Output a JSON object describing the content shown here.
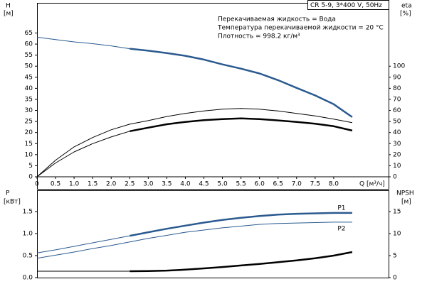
{
  "chart_data": [
    {
      "type": "line",
      "title": "CR 5-9, 3*400 V, 50Hz",
      "annotations": [
        "Перекачиваемая жидкость = Вода",
        "Температура перекачиваемой жидкости = 20 °C",
        "Плотность = 998.2 кг/м³"
      ],
      "xlabel": "Q [м³/ч]",
      "ylabel": "H",
      "yunit": "[м]",
      "y2label": "eta",
      "y2unit": "[%]",
      "x": [
        0,
        0.5,
        1,
        1.5,
        2,
        2.5,
        3,
        3.5,
        4,
        4.5,
        5,
        5.5,
        6,
        6.5,
        7,
        7.5,
        8,
        8.5
      ],
      "xlim": [
        0,
        9.48
      ],
      "xticks": [
        0,
        0.5,
        {
          "value": 1,
          "label": "1.0"
        },
        1.5,
        {
          "value": 2,
          "label": "2.0"
        },
        2.5,
        {
          "value": 3,
          "label": "3.0"
        },
        3.5,
        {
          "value": 4,
          "label": "4.0"
        },
        4.5,
        {
          "value": 5,
          "label": "5.0"
        },
        5.5,
        {
          "value": 6,
          "label": "6.0"
        },
        6.5,
        {
          "value": 7,
          "label": "7.0"
        },
        7.5,
        {
          "value": 8,
          "label": "8.0"
        }
      ],
      "ylim": [
        0,
        78
      ],
      "yticks": [
        0,
        5,
        10,
        15,
        20,
        25,
        30,
        35,
        40,
        45,
        50,
        55,
        60,
        65
      ],
      "y2lim": [
        0,
        156
      ],
      "y2ticks": [
        0,
        10,
        20,
        30,
        40,
        50,
        60,
        70,
        80,
        90,
        100
      ],
      "series": [
        {
          "color": "#2a5a8f",
          "width": 1,
          "values": [
            63.1,
            62.0,
            61.0,
            60.2,
            59.2,
            57.9,
            null,
            null,
            null,
            null,
            null,
            null,
            null,
            null,
            null,
            null,
            null,
            null
          ]
        },
        {
          "color": "#2a5a8f",
          "width": 2.5,
          "values": [
            null,
            null,
            null,
            null,
            null,
            57.9,
            57.0,
            55.9,
            54.7,
            53.0,
            50.8,
            48.9,
            46.7,
            43.7,
            40.2,
            36.8,
            32.8,
            27.0
          ]
        },
        {
          "color": "#000000",
          "width": 1,
          "axis": "y2",
          "values": [
            0,
            15,
            27,
            35.5,
            42.5,
            47.6,
            50.8,
            54.5,
            57.3,
            59.5,
            61.1,
            61.8,
            61.1,
            59.5,
            57.3,
            55,
            52.1,
            48.9
          ]
        },
        {
          "color": "#000000",
          "width": 1,
          "axis": "y2",
          "values": [
            0,
            12.5,
            22.5,
            30,
            36,
            41.2,
            null,
            null,
            null,
            null,
            null,
            null,
            null,
            null,
            null,
            null,
            null,
            null
          ]
        },
        {
          "color": "#000000",
          "width": 2.5,
          "axis": "y2",
          "values": [
            null,
            null,
            null,
            null,
            null,
            41.2,
            44.4,
            47.5,
            49.6,
            51.2,
            52.1,
            52.8,
            52.1,
            51,
            49.6,
            48,
            45.7,
            41.8
          ]
        }
      ]
    },
    {
      "type": "line",
      "ylabel": "P",
      "yunit": "[кВт]",
      "y2label": "NPSH",
      "y2unit": "[м]",
      "x": [
        0,
        0.5,
        1,
        1.5,
        2,
        2.5,
        3,
        3.5,
        4,
        4.5,
        5,
        5.5,
        6,
        6.5,
        7,
        7.5,
        8,
        8.5
      ],
      "xlim": [
        0,
        9.48
      ],
      "ylim": [
        0,
        2.0
      ],
      "yticks": [
        {
          "value": 0,
          "label": "0.0"
        },
        0.5,
        {
          "value": 1,
          "label": "1.0"
        },
        1.5
      ],
      "y2lim": [
        0,
        20
      ],
      "y2ticks": [
        0,
        5,
        10,
        15
      ],
      "series": [
        {
          "color": "#2a5a8f",
          "width": 1,
          "values": [
            0.56,
            0.63,
            0.71,
            0.79,
            0.87,
            0.95,
            null,
            null,
            null,
            null,
            null,
            null,
            null,
            null,
            null,
            null,
            null,
            null
          ]
        },
        {
          "name": "P1",
          "color": "#2a5a8f",
          "width": 2.5,
          "values": [
            null,
            null,
            null,
            null,
            null,
            0.95,
            1.03,
            1.11,
            1.18,
            1.25,
            1.31,
            1.36,
            1.4,
            1.43,
            1.45,
            1.46,
            1.47,
            1.47
          ]
        },
        {
          "name": "P2",
          "color": "#2a5a8f",
          "width": 1,
          "values": [
            0.44,
            0.51,
            0.58,
            0.66,
            0.73,
            0.81,
            0.89,
            0.96,
            1.03,
            1.08,
            1.13,
            1.17,
            1.21,
            1.23,
            1.24,
            1.25,
            1.26,
            1.26
          ]
        },
        {
          "color": "#000000",
          "width": 1,
          "axis": "y2",
          "values": [
            1.45,
            1.45,
            1.45,
            1.45,
            1.45,
            1.45,
            null,
            null,
            null,
            null,
            null,
            null,
            null,
            null,
            null,
            null,
            null,
            null
          ]
        },
        {
          "color": "#000000",
          "width": 2.5,
          "axis": "y2",
          "values": [
            null,
            null,
            null,
            null,
            null,
            1.45,
            1.5,
            1.6,
            1.8,
            2.1,
            2.4,
            2.75,
            3.1,
            3.5,
            3.9,
            4.4,
            5.0,
            5.8
          ]
        }
      ]
    }
  ]
}
